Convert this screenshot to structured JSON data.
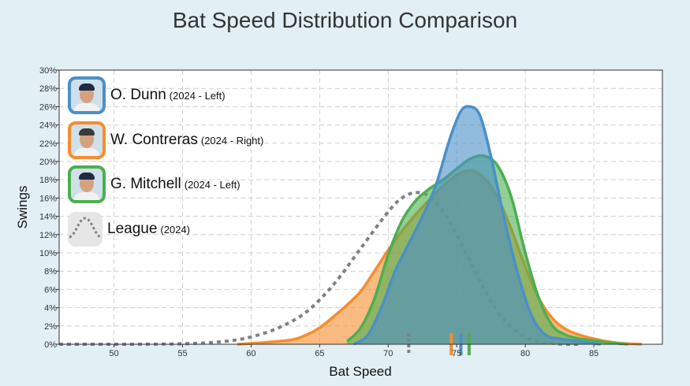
{
  "title": "Bat Speed Distribution Comparison",
  "chart_data": {
    "type": "area",
    "title": "Bat Speed Distribution Comparison",
    "xlabel": "Bat Speed",
    "ylabel": "Swings",
    "xlim": [
      46,
      90
    ],
    "ylim": [
      0,
      30
    ],
    "x_ticks": [
      50,
      55,
      60,
      65,
      70,
      75,
      80,
      85
    ],
    "y_ticks": [
      0,
      2,
      4,
      6,
      8,
      10,
      12,
      14,
      16,
      18,
      20,
      22,
      24,
      26,
      28,
      30
    ],
    "y_tick_suffix": "%",
    "grid": true,
    "series": [
      {
        "name": "League",
        "detail": "(2024)",
        "color": "#808080",
        "style": "dotted",
        "mean_marker": 71.5,
        "x": [
          46,
          50,
          55,
          58,
          60,
          62,
          64,
          66,
          68,
          70,
          71,
          72,
          73,
          74,
          75,
          76,
          78,
          80,
          82,
          84
        ],
        "y": [
          0,
          0,
          0.05,
          0.3,
          0.8,
          1.8,
          3.5,
          6.5,
          10.5,
          14.5,
          16.0,
          16.6,
          16.2,
          14.5,
          12.0,
          9.0,
          3.5,
          0.8,
          0.1,
          0
        ]
      },
      {
        "name": "W. Contreras",
        "detail": "(2024 - Right)",
        "color": "#f58d2e",
        "style": "filled",
        "mean_marker": 74.6,
        "x": [
          59,
          61,
          63,
          64,
          65,
          66,
          67,
          68,
          69,
          70,
          71,
          72,
          73,
          74,
          75,
          76,
          77,
          78,
          79,
          80,
          81,
          82,
          83,
          84,
          85,
          86,
          87,
          88.5
        ],
        "y": [
          0,
          0.2,
          0.5,
          1.0,
          1.8,
          3.0,
          4.3,
          5.8,
          8.0,
          10.3,
          12.4,
          14.2,
          15.8,
          17.3,
          18.5,
          19.0,
          18.2,
          16.0,
          12.5,
          8.5,
          5.0,
          2.8,
          1.6,
          1.0,
          0.6,
          0.3,
          0.1,
          0
        ]
      },
      {
        "name": "G. Mitchell",
        "detail": "(2024 - Left)",
        "color": "#4caf50",
        "style": "filled",
        "mean_marker": 75.9,
        "x": [
          67,
          68,
          69,
          70,
          71,
          72,
          73,
          74,
          75,
          76,
          77,
          78,
          79,
          80,
          81,
          82,
          83,
          84,
          85,
          86,
          87.5
        ],
        "y": [
          0.3,
          1.8,
          5.0,
          9.8,
          13.5,
          15.7,
          17.0,
          18.0,
          19.2,
          20.3,
          20.6,
          19.5,
          16.0,
          10.0,
          5.0,
          2.0,
          1.0,
          0.6,
          0.4,
          0.2,
          0
        ]
      },
      {
        "name": "O. Dunn",
        "detail": "(2024 - Left)",
        "color": "#4a90c8",
        "style": "filled",
        "mean_marker": 75.3,
        "x": [
          67.5,
          68.5,
          69.5,
          70.5,
          71.5,
          72.5,
          73.5,
          74.5,
          75.3,
          76,
          76.7,
          77.5,
          78.5,
          79.5,
          80.5,
          81.5,
          82.5,
          83.5,
          84.5,
          85.5
        ],
        "y": [
          0,
          1.0,
          4.0,
          8.0,
          11.0,
          14.0,
          17.5,
          22.5,
          25.5,
          26.0,
          25.0,
          20.5,
          13.5,
          7.5,
          3.0,
          1.0,
          0.6,
          0.4,
          0.2,
          0
        ]
      }
    ]
  },
  "legend": [
    {
      "name": "O. Dunn",
      "detail": "(2024 - Left)",
      "color": "#4a90c8"
    },
    {
      "name": "W. Contreras",
      "detail": "(2024 - Right)",
      "color": "#f58d2e"
    },
    {
      "name": "G. Mitchell",
      "detail": "(2024 - Left)",
      "color": "#4caf50"
    },
    {
      "name": "League",
      "detail": "(2024)",
      "color": "#808080"
    }
  ]
}
